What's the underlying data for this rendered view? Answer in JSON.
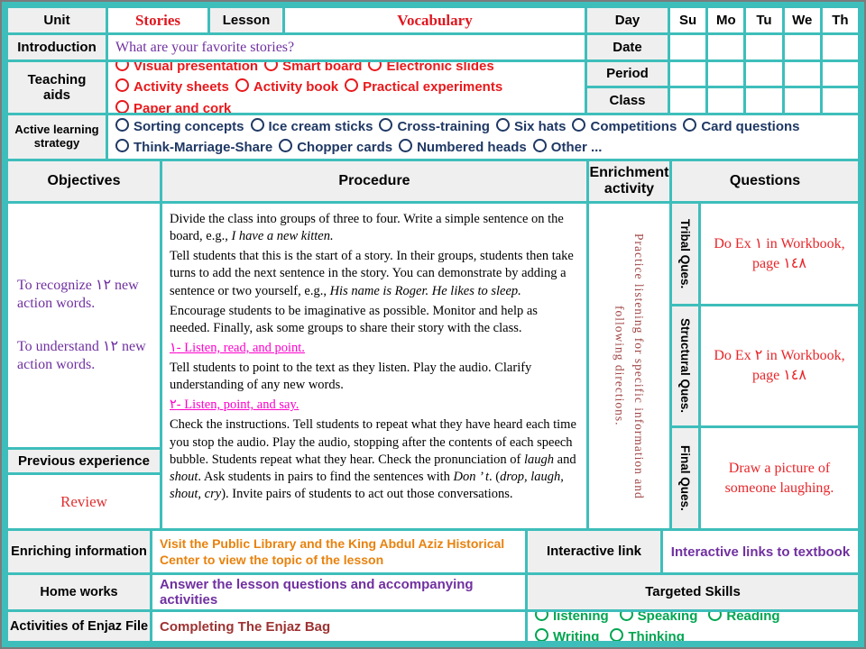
{
  "palette": {
    "border_teal": "#3ebebb",
    "outer_gray": "#7b7b7b",
    "header_gray": "#efefef",
    "red": "#e8191c",
    "red_serif": "#e01820",
    "purple": "#7030a0",
    "navy": "#1f3864",
    "magenta": "#ff00cc",
    "enrichment_red": "#a04545",
    "orange": "#e8820e",
    "enjaz_red": "#9e3232",
    "green": "#00a550"
  },
  "top": {
    "unit_label": "Unit",
    "unit_value": "Stories",
    "lesson_label": "Lesson",
    "lesson_value": "Vocabulary",
    "intro_label": "Introduction",
    "intro_value": "What are your favorite stories?",
    "teaching_aids_label": "Teaching aids",
    "teaching_aids_options": [
      "Visual presentation",
      "Smart board",
      "Electronic slides",
      "Activity sheets",
      "Activity book",
      "Practical experiments",
      "Paper and cork"
    ],
    "strategy_label": "Active learning strategy",
    "strategy_options": [
      "Sorting concepts",
      "Ice cream sticks",
      "Cross-training",
      "Six hats",
      "Competitions",
      "Card questions",
      "Think-Marriage-Share",
      "Chopper cards",
      "Numbered heads",
      "Other ..."
    ],
    "schedule": {
      "day_label": "Day",
      "days": [
        "Su",
        "Mo",
        "Tu",
        "We",
        "Th"
      ],
      "date_label": "Date",
      "period_label": "Period",
      "class_label": "Class"
    }
  },
  "main": {
    "headers": {
      "objectives": "Objectives",
      "procedure": "Procedure",
      "enrichment": "Enrichment activity",
      "questions": "Questions"
    },
    "objectives": [
      "To recognize ١٢ new action words.",
      "To understand ١٢ new action words."
    ],
    "previous_experience_label": "Previous experience",
    "previous_experience_value": "Review",
    "procedure_paragraphs": [
      {
        "type": "text",
        "runs": [
          {
            "t": "Divide the class into groups of three to four. Write a simple sentence on the board, e.g., "
          },
          {
            "t": "I have a new kitten.",
            "i": true
          }
        ]
      },
      {
        "type": "text",
        "runs": [
          {
            "t": "Tell students that this is the start of a story. In their groups, students then take turns to add the next sentence in the story. You can demonstrate by adding a sentence or two yourself, e.g., "
          },
          {
            "t": "His name is Roger. He likes to sleep.",
            "i": true
          }
        ]
      },
      {
        "type": "text",
        "runs": [
          {
            "t": "Encourage students to be imaginative as possible. Monitor and help as needed. Finally, ask some groups to share their story with the class."
          }
        ]
      },
      {
        "type": "heading",
        "runs": [
          {
            "t": "١- Listen, read, and point."
          }
        ]
      },
      {
        "type": "text",
        "runs": [
          {
            "t": "Tell students to point to the text as they listen. Play the audio. Clarify understanding of any new words."
          }
        ]
      },
      {
        "type": "heading",
        "runs": [
          {
            "t": "٢- Listen, point, and say."
          }
        ]
      },
      {
        "type": "text",
        "runs": [
          {
            "t": "Check the instructions. Tell students to repeat what they have heard each time you stop the audio. Play the audio, stopping after the contents of each speech bubble. Students repeat what they hear. Check the pronunciation of "
          },
          {
            "t": "laugh",
            "i": true
          },
          {
            "t": " and "
          },
          {
            "t": "shout",
            "i": true
          },
          {
            "t": ". Ask students in pairs to find the sentences with "
          },
          {
            "t": "Don ’ t",
            "i": true
          },
          {
            "t": ". ("
          },
          {
            "t": "drop, laugh, shout, cry",
            "i": true
          },
          {
            "t": "). Invite pairs of students to act out those conversations."
          }
        ]
      }
    ],
    "enrichment_text": "Practice listening for specific information and following directions.",
    "questions": [
      {
        "label": "Tribal Ques.",
        "text": "Do Ex ١ in Workbook, page ١٤٨"
      },
      {
        "label": "Structural Ques.",
        "text": "Do Ex ٢ in Workbook, page ١٤٨"
      },
      {
        "label": "Final Ques.",
        "text": "Draw a picture of someone laughing."
      }
    ]
  },
  "bottom": {
    "enriching_label": "Enriching information",
    "enriching_value": "Visit the Public Library and the King Abdul Aziz Historical Center to view the topic of the lesson",
    "interactive_link_label": "Interactive link",
    "interactive_link_value": "Interactive links to textbook",
    "homework_label": "Home works",
    "homework_value": "Answer the lesson questions and accompanying activities",
    "targeted_skills_label": "Targeted Skills",
    "enjaz_label": "Activities of Enjaz File",
    "enjaz_value": "Completing The Enjaz Bag",
    "skills": [
      "listening",
      "Speaking",
      "Reading",
      "Writing",
      "Thinking"
    ]
  }
}
